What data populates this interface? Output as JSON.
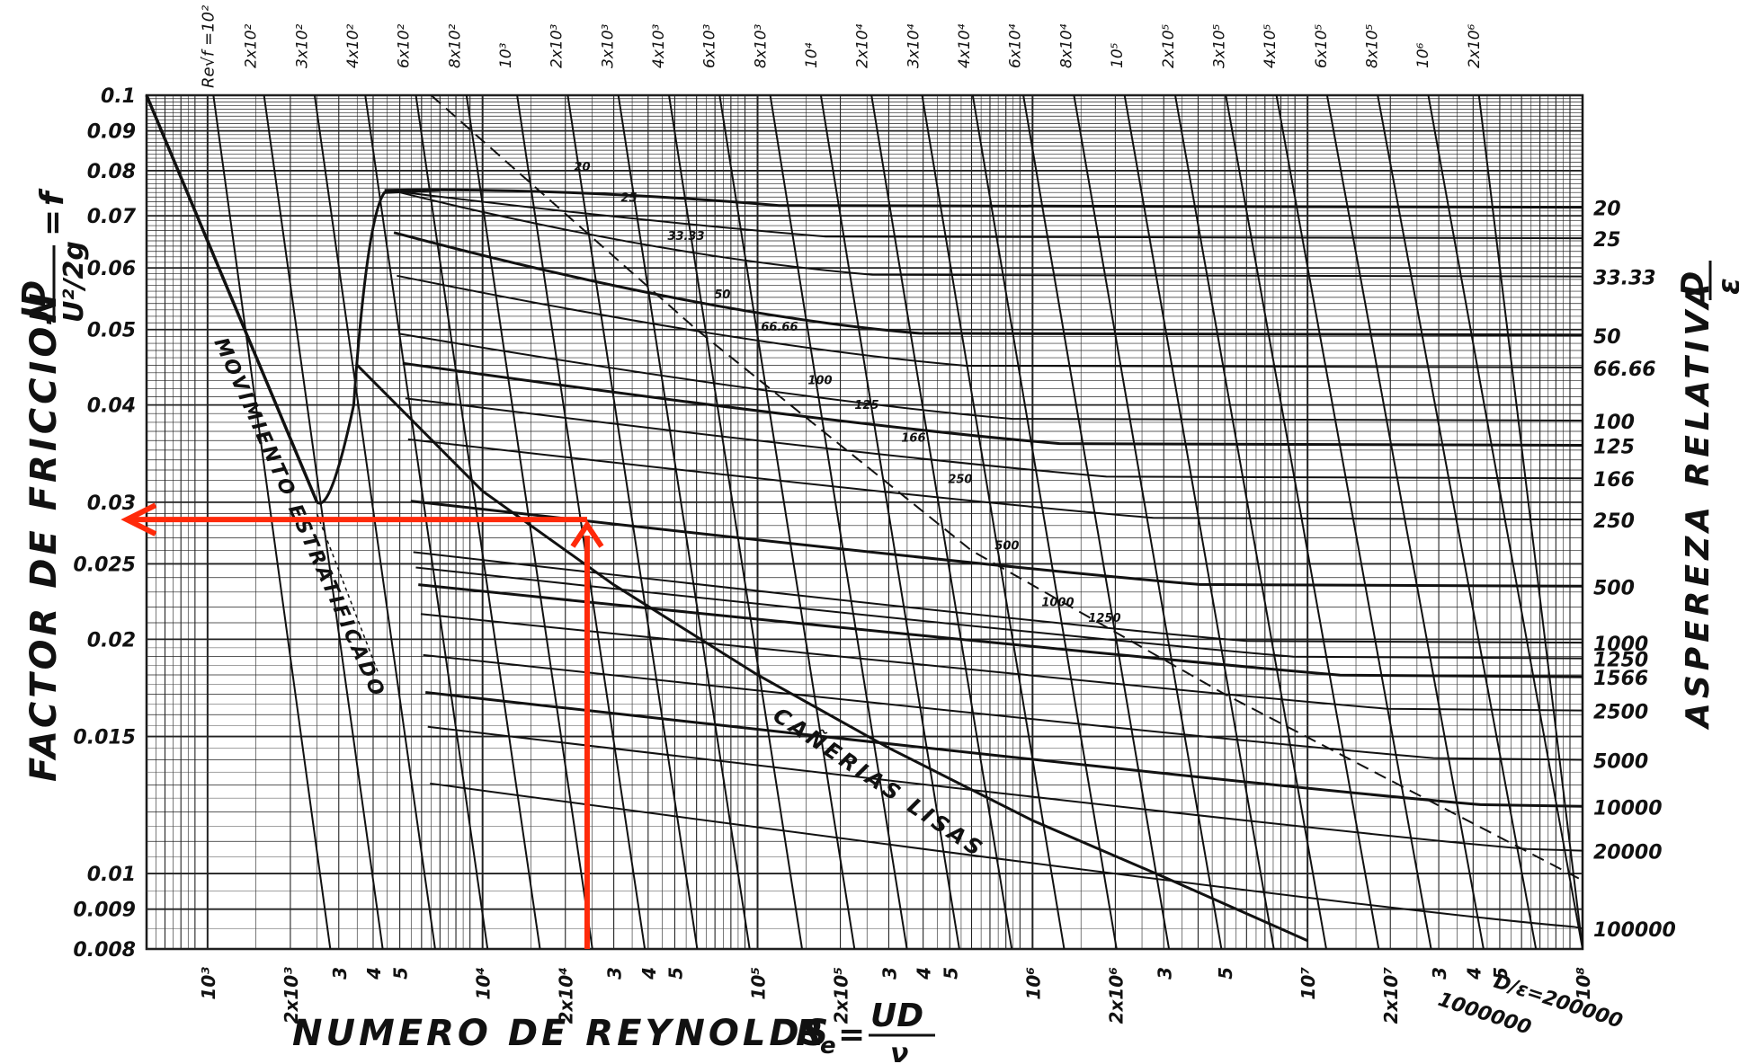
{
  "chart_data": {
    "type": "line",
    "title": "",
    "xlabel": "NUMERO DE REYNOLDS",
    "xlabel_formula": {
      "prefix": "R",
      "sub": "e",
      "eq": "=",
      "num": "UD",
      "den": "ν"
    },
    "ylabel": "FACTOR DE FRICCION",
    "ylabel_formula": {
      "num": "JD",
      "den": "U²/2g",
      "eq": "=",
      "sym": "f"
    },
    "right_label": "ASPEREZA RELATIVA",
    "right_label_formula": {
      "num": "D",
      "den": "ε"
    },
    "x_scale": "log",
    "y_scale": "log",
    "xlim": [
      600,
      100000000
    ],
    "ylim": [
      0.008,
      0.1
    ],
    "y_ticks": [
      {
        "v": 0.1,
        "t": "0.1"
      },
      {
        "v": 0.09,
        "t": "0.09"
      },
      {
        "v": 0.08,
        "t": "0.08"
      },
      {
        "v": 0.07,
        "t": "0.07"
      },
      {
        "v": 0.06,
        "t": "0.06"
      },
      {
        "v": 0.05,
        "t": "0.05"
      },
      {
        "v": 0.04,
        "t": "0.04"
      },
      {
        "v": 0.03,
        "t": "0.03"
      },
      {
        "v": 0.025,
        "t": "0.025"
      },
      {
        "v": 0.02,
        "t": "0.02"
      },
      {
        "v": 0.015,
        "t": "0.015"
      },
      {
        "v": 0.01,
        "t": "0.01"
      },
      {
        "v": 0.009,
        "t": "0.009"
      },
      {
        "v": 0.008,
        "t": "0.008"
      }
    ],
    "x_ticks": [
      {
        "v": 1000,
        "t": "10³"
      },
      {
        "v": 2000,
        "t": "2x10³"
      },
      {
        "v": 3000,
        "t": "3"
      },
      {
        "v": 4000,
        "t": "4"
      },
      {
        "v": 5000,
        "t": "5"
      },
      {
        "v": 10000,
        "t": "10⁴"
      },
      {
        "v": 20000,
        "t": "2x10⁴"
      },
      {
        "v": 30000,
        "t": "3"
      },
      {
        "v": 40000,
        "t": "4"
      },
      {
        "v": 50000,
        "t": "5"
      },
      {
        "v": 100000,
        "t": "10⁵"
      },
      {
        "v": 200000,
        "t": "2x10⁵"
      },
      {
        "v": 300000,
        "t": "3"
      },
      {
        "v": 400000,
        "t": "4"
      },
      {
        "v": 500000,
        "t": "5"
      },
      {
        "v": 1000000,
        "t": "10⁶"
      },
      {
        "v": 2000000,
        "t": "2x10⁶"
      },
      {
        "v": 3000000,
        "t": "3"
      },
      {
        "v": 5000000,
        "t": "5"
      },
      {
        "v": 10000000,
        "t": "10⁷"
      },
      {
        "v": 20000000,
        "t": "2x10⁷"
      },
      {
        "v": 30000000,
        "t": "3"
      },
      {
        "v": 40000000,
        "t": "4"
      },
      {
        "v": 50000000,
        "t": "5"
      },
      {
        "v": 100000000,
        "t": "10⁸"
      }
    ],
    "top_label_first": "Re√f =10²",
    "top_ticks": [
      "2x10²",
      "3x10²",
      "4x10²",
      "6x10²",
      "8x10²",
      "10³",
      "2x10³",
      "3x10³",
      "4x10³",
      "6x10³",
      "8x10³",
      "10⁴",
      "2x10⁴",
      "3x10⁴",
      "4x10⁴",
      "6x10⁴",
      "8x10⁴",
      "10⁵",
      "2x10⁵",
      "3x10⁵",
      "4x10⁵",
      "6x10⁵",
      "8x10⁵",
      "10⁶",
      "2x10⁶"
    ],
    "laminar_line": {
      "name": "",
      "points": [
        [
          600,
          0.1
        ],
        [
          2500,
          0.03
        ]
      ]
    },
    "stratified_label": "MOVIMIENTO ESTRATIFICADO",
    "smooth_label": "CAÑERIAS LISAS",
    "relative_roughness": [
      {
        "r": "20",
        "f": 0.0718
      },
      {
        "r": "25",
        "f": 0.0655
      },
      {
        "r": "33.33",
        "f": 0.0585
      },
      {
        "r": "50",
        "f": 0.0492
      },
      {
        "r": "66.66",
        "f": 0.0447
      },
      {
        "r": "100",
        "f": 0.0382
      },
      {
        "r": "125",
        "f": 0.0355
      },
      {
        "r": "166",
        "f": 0.0322
      },
      {
        "r": "250",
        "f": 0.0285
      },
      {
        "r": "500",
        "f": 0.0234
      },
      {
        "r": "1000",
        "f": 0.0198
      },
      {
        "r": "1250",
        "f": 0.0189
      },
      {
        "r": "1566",
        "f": 0.0179
      },
      {
        "r": "2500",
        "f": 0.0162
      },
      {
        "r": "5000",
        "f": 0.014
      },
      {
        "r": "10000",
        "f": 0.0122
      },
      {
        "r": "20000",
        "f": 0.0107
      },
      {
        "r": "100000",
        "f": 0.0085
      }
    ],
    "bottom_right_labels": [
      "1000000",
      "D/ε=200000"
    ],
    "example_reading": {
      "Re": 24000,
      "f": 0.0285,
      "arrow_color": "#ff2a0a"
    }
  }
}
